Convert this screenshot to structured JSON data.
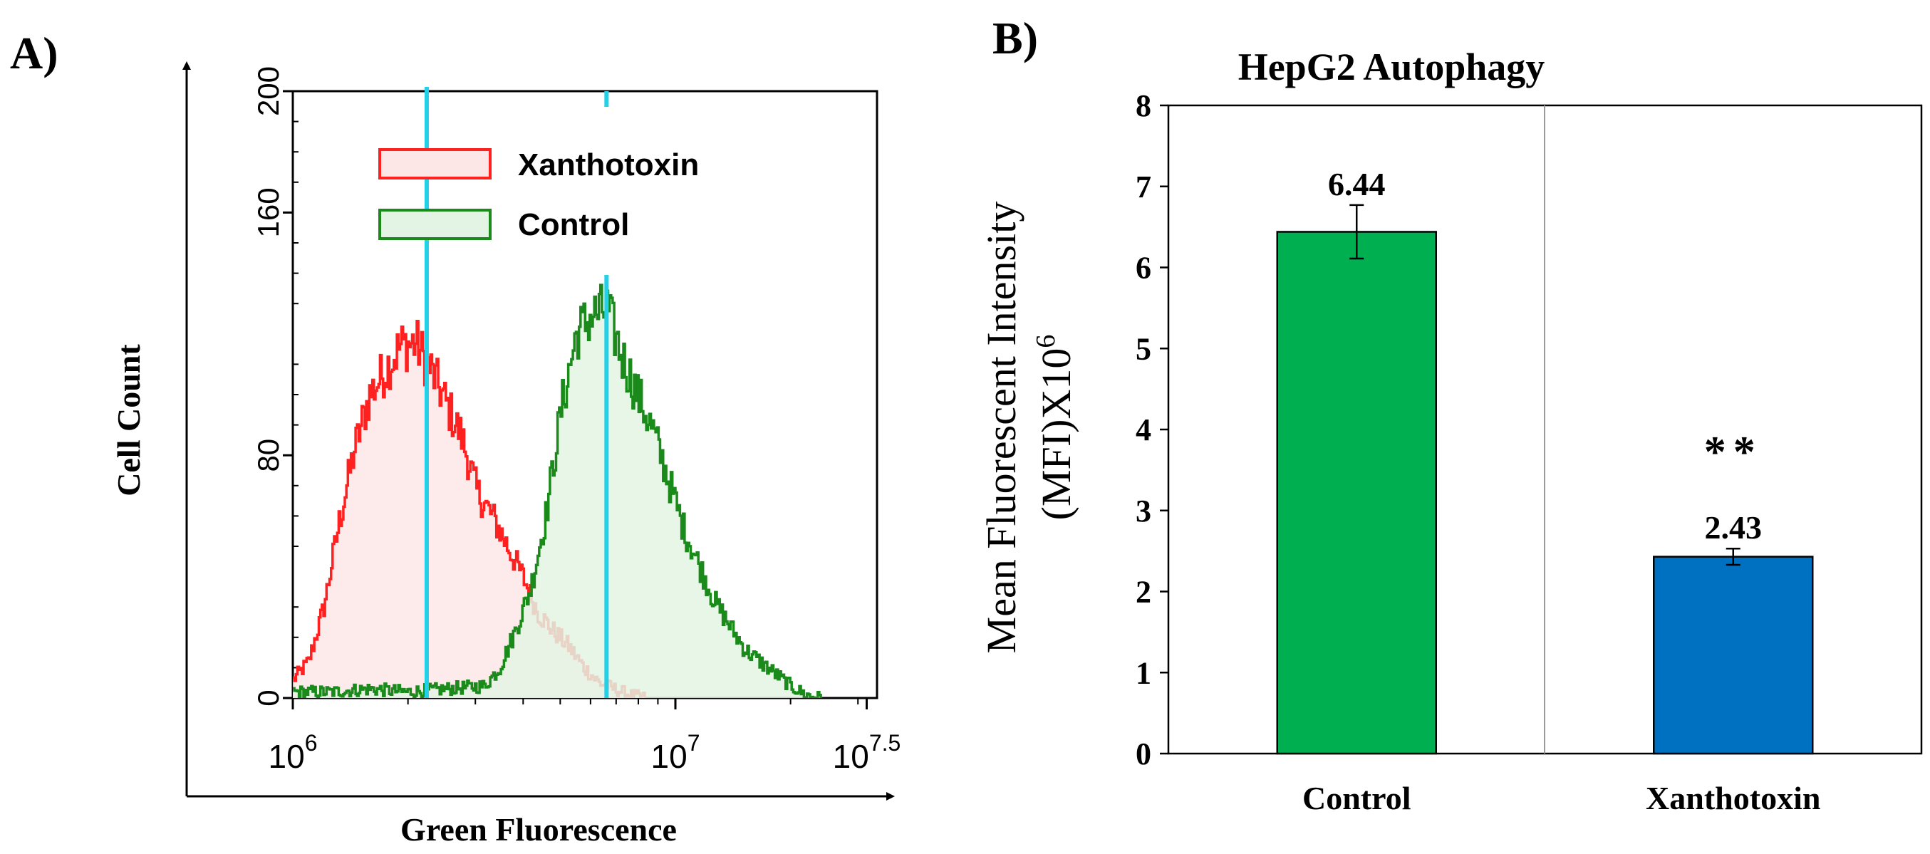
{
  "chart_data": [
    {
      "panel_label": "A)",
      "type": "histogram",
      "title": "",
      "xlabel": "Green Fluorescence",
      "ylabel": "Cell Count",
      "x_scale": "log10",
      "xlim_log10": [
        6,
        7.5
      ],
      "ylim": [
        0,
        200
      ],
      "x_ticks": [
        {
          "log10": 6,
          "base": "10",
          "exp": "6"
        },
        {
          "log10": 7,
          "base": "10",
          "exp": "7"
        },
        {
          "log10": 7.5,
          "base": "10",
          "exp": "7.5"
        }
      ],
      "y_ticks": [
        {
          "value": 0,
          "label": "0"
        },
        {
          "value": 80,
          "label": "80"
        },
        {
          "value": 160,
          "label": "160"
        },
        {
          "value": 200,
          "label": "200"
        }
      ],
      "median_markers_log10": [
        6.35,
        6.82
      ],
      "series": [
        {
          "name": "Xanthotoxin",
          "color": "#ff2020",
          "fill": "#fde6e6",
          "x_log10": [
            6.0,
            6.04,
            6.08,
            6.12,
            6.16,
            6.2,
            6.24,
            6.28,
            6.32,
            6.36,
            6.4,
            6.44,
            6.48,
            6.52,
            6.56,
            6.6,
            6.64,
            6.68,
            6.72,
            6.76,
            6.8,
            6.84,
            6.88,
            6.92
          ],
          "counts": [
            6,
            12,
            30,
            58,
            82,
            100,
            108,
            116,
            117,
            108,
            97,
            86,
            68,
            60,
            50,
            40,
            28,
            22,
            17,
            10,
            5,
            3,
            1,
            0
          ]
        },
        {
          "name": "Control",
          "color": "#1a8a1a",
          "fill": "#e4f4e4",
          "x_log10": [
            6.0,
            6.1,
            6.2,
            6.3,
            6.4,
            6.5,
            6.54,
            6.58,
            6.62,
            6.66,
            6.7,
            6.74,
            6.78,
            6.82,
            6.86,
            6.9,
            6.94,
            6.98,
            7.02,
            7.06,
            7.1,
            7.14,
            7.18,
            7.22,
            7.26,
            7.3,
            7.34,
            7.38
          ],
          "counts": [
            2,
            2,
            3,
            2,
            3,
            4,
            10,
            22,
            36,
            60,
            95,
            120,
            126,
            128,
            112,
            100,
            88,
            72,
            56,
            44,
            32,
            24,
            16,
            12,
            8,
            4,
            1,
            0
          ]
        }
      ],
      "legend": [
        {
          "name": "Xanthotoxin"
        },
        {
          "name": "Control"
        }
      ]
    },
    {
      "panel_label": "B)",
      "type": "bar",
      "title": "HepG2 Autophagy",
      "xlabel": "",
      "ylabel_line1": "Mean Fluorescent Intensity",
      "ylabel_line2_main": "(MFI)X10",
      "ylabel_line2_sup": "6",
      "ylim": [
        0,
        8
      ],
      "y_ticks": [
        "0",
        "1",
        "2",
        "3",
        "4",
        "5",
        "6",
        "7",
        "8"
      ],
      "categories": [
        "Control",
        "Xanthotoxin"
      ],
      "values": [
        6.44,
        2.43
      ],
      "value_labels": [
        "6.44",
        "2.43"
      ],
      "errors": [
        0.33,
        0.1
      ],
      "colors": [
        "#00b050",
        "#0070c0"
      ],
      "significance": [
        "",
        "**"
      ]
    }
  ]
}
